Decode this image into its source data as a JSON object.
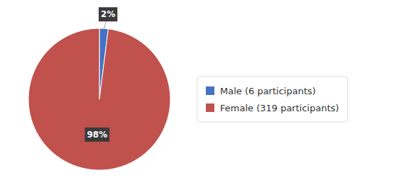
{
  "chart_data": {
    "type": "pie",
    "categories": [
      "Male (6 participants)",
      "Female (319 participants)"
    ],
    "values": [
      2,
      98
    ],
    "value_labels": [
      "2%",
      "98%"
    ],
    "colors": [
      "#4472C4",
      "#C0514D"
    ],
    "data_labels": true,
    "legend": "right"
  }
}
